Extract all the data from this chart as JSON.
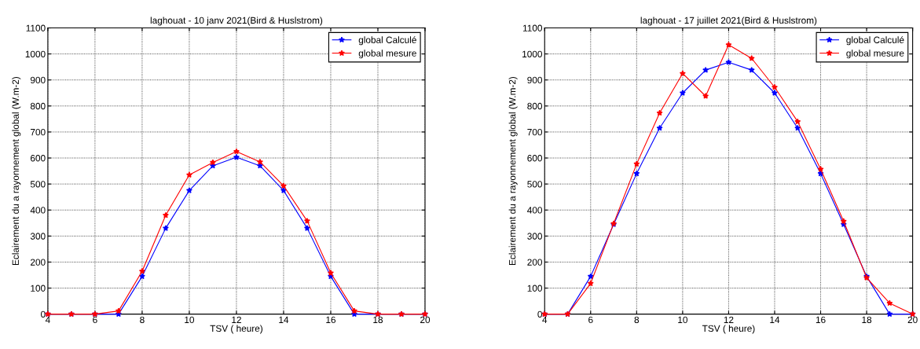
{
  "chart_data": [
    {
      "type": "line",
      "title": "laghouat - 10 janv 2021(Bird & Huslstrom)",
      "xlabel": "TSV ( heure)",
      "ylabel": "Eclairement du a rayonnement global (W.m-2)",
      "x": [
        4,
        5,
        6,
        7,
        8,
        9,
        10,
        11,
        12,
        13,
        14,
        15,
        16,
        17,
        18,
        19,
        20
      ],
      "series": [
        {
          "name": "global Calculé",
          "color": "#0000ff",
          "values": [
            0,
            0,
            0,
            0,
            145,
            330,
            475,
            570,
            603,
            570,
            475,
            330,
            145,
            0,
            0,
            0,
            0
          ]
        },
        {
          "name": "global mesure",
          "color": "#ff0000",
          "values": [
            0,
            0,
            0,
            12,
            165,
            380,
            535,
            583,
            625,
            585,
            493,
            358,
            158,
            12,
            0,
            0,
            0
          ]
        }
      ],
      "xlim": [
        4,
        20
      ],
      "ylim": [
        0,
        1100
      ],
      "xticks": [
        4,
        6,
        8,
        10,
        12,
        14,
        16,
        18,
        20
      ],
      "yticks": [
        0,
        100,
        200,
        300,
        400,
        500,
        600,
        700,
        800,
        900,
        1000,
        1100
      ],
      "grid": true,
      "legend": "top right",
      "marker": "star",
      "line_style": "solid"
    },
    {
      "type": "line",
      "title": "laghouat - 17 juillet 2021(Bird & Huslstrom)",
      "xlabel": "TSV ( heure)",
      "ylabel": "Eclairement du a rayonnement global (W.m-2)",
      "x": [
        4,
        5,
        6,
        7,
        8,
        9,
        10,
        11,
        12,
        13,
        14,
        15,
        16,
        17,
        18,
        19,
        20
      ],
      "series": [
        {
          "name": "global Calculé",
          "color": "#0000ff",
          "values": [
            0,
            0,
            145,
            345,
            540,
            715,
            850,
            938,
            968,
            938,
            850,
            715,
            540,
            345,
            145,
            0,
            0
          ]
        },
        {
          "name": "global mesure",
          "color": "#ff0000",
          "values": [
            0,
            0,
            118,
            348,
            577,
            773,
            925,
            838,
            1035,
            983,
            872,
            740,
            557,
            357,
            140,
            42,
            0
          ]
        }
      ],
      "xlim": [
        4,
        20
      ],
      "ylim": [
        0,
        1100
      ],
      "xticks": [
        4,
        6,
        8,
        10,
        12,
        14,
        16,
        18,
        20
      ],
      "yticks": [
        0,
        100,
        200,
        300,
        400,
        500,
        600,
        700,
        800,
        900,
        1000,
        1100
      ],
      "grid": true,
      "legend": "top right",
      "marker": "star",
      "line_style": "solid"
    }
  ]
}
